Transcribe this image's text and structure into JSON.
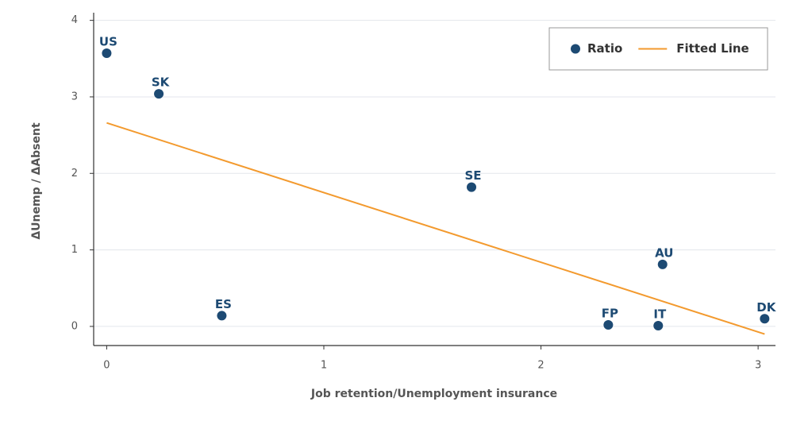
{
  "chart_data": {
    "type": "scatter",
    "x_label": "Job retention/Unemployment insurance",
    "y_label": "ΔUnemp / ΔAbsent",
    "xlim": [
      -0.06,
      3.08
    ],
    "ylim": [
      -0.25,
      4.1
    ],
    "xticks": [
      0,
      1,
      2,
      3
    ],
    "yticks": [
      0,
      1,
      2,
      3,
      4
    ],
    "grid": true,
    "legend": "upper right",
    "series": [
      {
        "name": "Ratio",
        "type": "scatter",
        "color": "#1d4a73",
        "labels": [
          "US",
          "SK",
          "ES",
          "SE",
          "AU",
          "FP",
          "IT",
          "DK"
        ],
        "x": [
          0,
          0.24,
          0.53,
          1.68,
          2.56,
          2.31,
          2.54,
          3.03
        ],
        "values": [
          3.57,
          3.04,
          0.14,
          1.82,
          0.81,
          0.02,
          0.01,
          0.1
        ]
      },
      {
        "name": "Fitted Line",
        "type": "line",
        "color": "#f39a2e",
        "x": [
          0,
          3.03
        ],
        "values": [
          2.66,
          -0.1
        ]
      }
    ]
  }
}
